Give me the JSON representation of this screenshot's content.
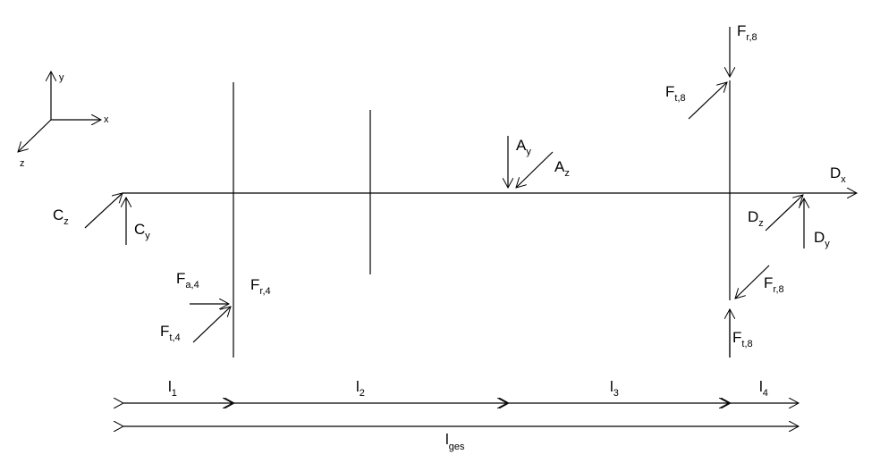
{
  "coordinate_system": {
    "x": "x",
    "y": "y",
    "z": "z"
  },
  "labels": {
    "Fr8": {
      "main": "F",
      "sub": "r,8"
    },
    "Ft8_top": {
      "main": "F",
      "sub": "t,8"
    },
    "Ay": {
      "main": "A",
      "sub": "y"
    },
    "Az": {
      "main": "A",
      "sub": "z"
    },
    "Dx": {
      "main": "D",
      "sub": "x"
    },
    "Cz": {
      "main": "C",
      "sub": "z"
    },
    "Cy": {
      "main": "C",
      "sub": "y"
    },
    "Dz": {
      "main": "D",
      "sub": "z"
    },
    "Dy": {
      "main": "D",
      "sub": "y"
    },
    "Fa4": {
      "main": "F",
      "sub": "a,4"
    },
    "Fr4": {
      "main": "F",
      "sub": "r,4"
    },
    "Ft4": {
      "main": "F",
      "sub": "t,4"
    },
    "Fr8_low": {
      "main": "F",
      "sub": "r,8"
    },
    "Ft8_bottom": {
      "main": "F",
      "sub": "t,8"
    }
  },
  "dimensions": {
    "l1": {
      "main": "l",
      "sub": "1"
    },
    "l2": {
      "main": "l",
      "sub": "2"
    },
    "l3": {
      "main": "l",
      "sub": "3"
    },
    "l4": {
      "main": "l",
      "sub": "4"
    },
    "lges": {
      "main": "l",
      "sub": "ges"
    }
  }
}
